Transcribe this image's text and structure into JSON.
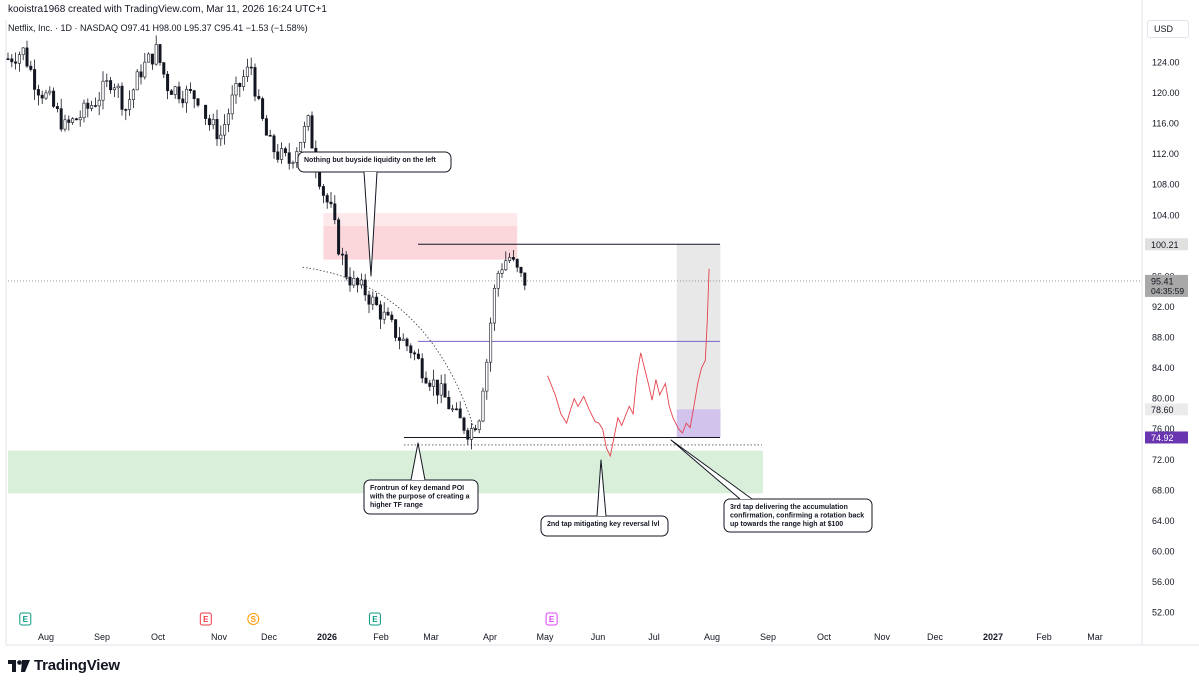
{
  "header": {
    "attribution": "kooistra1968 created with TradingView.com, Mar 11, 2026 16:24 UTC+1",
    "symbol_line": "Netflix, Inc. · 1D · NASDAQ  O97.41  H98.00  L95.37  C95.41  −1.53 (−1.58%)"
  },
  "currency_button": "USD",
  "logo_text": "TradingView",
  "colors": {
    "candle": "#131722",
    "supply_zone": "#f7b6be",
    "demand_zone": "#b9e2b9",
    "projection": "#e5424d",
    "range_lines": "#131722",
    "mid_line": "#7b61c9",
    "current_price_label": "#9e9e9e",
    "low_label": "#6a35b0"
  },
  "chart_data": {
    "type": "candlestick",
    "title": "",
    "xlabel": "",
    "ylabel": "",
    "ylim": [
      50,
      127
    ],
    "y_ticks": [
      52,
      56,
      60,
      64,
      68,
      72,
      76,
      80,
      84,
      88,
      92,
      96,
      100,
      104,
      108,
      112,
      116,
      120,
      124
    ],
    "x_ticks": [
      "Aug",
      "Sep",
      "Oct",
      "Nov",
      "Dec",
      "2026",
      "Feb",
      "Mar",
      "Apr",
      "May",
      "Jun",
      "Jul",
      "Aug",
      "Sep",
      "Oct",
      "Nov",
      "Dec",
      "2027",
      "Feb",
      "Mar"
    ],
    "bold_x_ticks": [
      "2026",
      "2027"
    ],
    "price_path": [
      [
        0,
        124.5
      ],
      [
        8,
        125.5
      ],
      [
        15,
        121
      ],
      [
        22,
        119
      ],
      [
        30,
        115.5
      ],
      [
        38,
        117
      ],
      [
        46,
        119
      ],
      [
        55,
        122
      ],
      [
        62,
        118
      ],
      [
        70,
        123
      ],
      [
        78,
        125.5
      ],
      [
        84,
        121
      ],
      [
        92,
        120
      ],
      [
        100,
        119.5
      ],
      [
        106,
        116
      ],
      [
        112,
        114.5
      ],
      [
        118,
        119
      ],
      [
        124,
        122
      ],
      [
        128,
        123.5
      ],
      [
        132,
        118
      ],
      [
        137,
        113.5
      ],
      [
        142,
        112
      ],
      [
        148,
        111
      ],
      [
        154,
        114
      ],
      [
        158,
        116
      ],
      [
        162,
        111
      ],
      [
        166,
        107
      ],
      [
        170,
        104.5
      ],
      [
        174,
        100
      ],
      [
        178,
        96.5
      ],
      [
        182,
        95
      ],
      [
        188,
        94
      ],
      [
        194,
        92
      ],
      [
        200,
        90
      ],
      [
        206,
        88
      ],
      [
        212,
        86.5
      ],
      [
        218,
        84
      ],
      [
        224,
        82
      ],
      [
        230,
        80
      ],
      [
        236,
        77.5
      ],
      [
        240,
        76.5
      ],
      [
        243,
        75.5
      ],
      [
        246,
        77
      ],
      [
        248,
        78
      ],
      [
        250,
        82
      ],
      [
        252,
        85
      ],
      [
        254,
        90
      ],
      [
        256,
        94
      ],
      [
        258,
        96.5
      ],
      [
        261,
        98
      ],
      [
        264,
        98.5
      ],
      [
        267,
        97
      ],
      [
        270,
        95.8
      ],
      [
        272,
        95.4
      ]
    ],
    "current_price": 95.41,
    "countdown": "04:35:59",
    "axis_labels": {
      "range_high": "100.21",
      "current": "95.41",
      "projected_high": "78.60",
      "range_low": "74.92"
    },
    "levels": {
      "range_high": 100.21,
      "range_mid": 87.5,
      "range_low": 74.92,
      "dotted_low": 74.6
    },
    "zones": [
      {
        "name": "supply",
        "top": 104.3,
        "bottom": 98.2,
        "start_day": 166,
        "end_day": 268
      },
      {
        "name": "demand",
        "top": 73.2,
        "bottom": 67.6,
        "start_day": 0,
        "end_day": 397
      }
    ],
    "projection_range": {
      "start_day": 352,
      "end_day": 375,
      "top": 100.21,
      "bottom": 74.92,
      "accumulation_top": 78.6
    },
    "projection_path": [
      [
        284,
        83
      ],
      [
        288,
        80.5
      ],
      [
        291,
        78
      ],
      [
        294,
        76.8
      ],
      [
        296,
        78.5
      ],
      [
        298,
        80
      ],
      [
        300,
        79
      ],
      [
        303,
        80.3
      ],
      [
        306,
        78.5
      ],
      [
        309,
        77
      ],
      [
        311,
        76.8
      ],
      [
        313,
        76
      ],
      [
        315,
        73.5
      ],
      [
        317,
        72.5
      ],
      [
        319,
        75
      ],
      [
        321,
        77.5
      ],
      [
        323,
        76.5
      ],
      [
        325,
        77.8
      ],
      [
        327,
        79
      ],
      [
        329,
        78
      ],
      [
        331,
        83
      ],
      [
        333,
        86
      ],
      [
        335,
        84
      ],
      [
        337,
        82
      ],
      [
        339,
        79.8
      ],
      [
        341,
        82.5
      ],
      [
        343,
        80.5
      ],
      [
        346,
        82
      ],
      [
        348,
        79
      ],
      [
        350,
        77.5
      ],
      [
        353,
        76
      ],
      [
        355,
        75.5
      ],
      [
        357,
        76.8
      ],
      [
        359,
        76.2
      ],
      [
        361,
        79
      ],
      [
        363,
        82
      ],
      [
        365,
        84
      ],
      [
        367,
        85
      ],
      [
        368,
        90
      ],
      [
        369,
        97
      ]
    ],
    "annotations": [
      "Nothing but buyside liquidity on the left",
      "Frontrun of key demand POI with the purpose of creating a higher TF range",
      "2nd tap mitigating key reversal lvl",
      "3rd tap delivering the accumulation confirmation, confirming a rotation back up towards the range high at $100"
    ],
    "event_markers": [
      {
        "day": 7,
        "letter": "E",
        "color": "#089981"
      },
      {
        "day": 102,
        "letter": "E",
        "color": "#f23645"
      },
      {
        "day": 127,
        "letter": "S",
        "color": "#ff9800"
      },
      {
        "day": 191,
        "letter": "E",
        "color": "#089981"
      },
      {
        "day": 284,
        "letter": "E",
        "color": "#e040fb"
      }
    ]
  }
}
